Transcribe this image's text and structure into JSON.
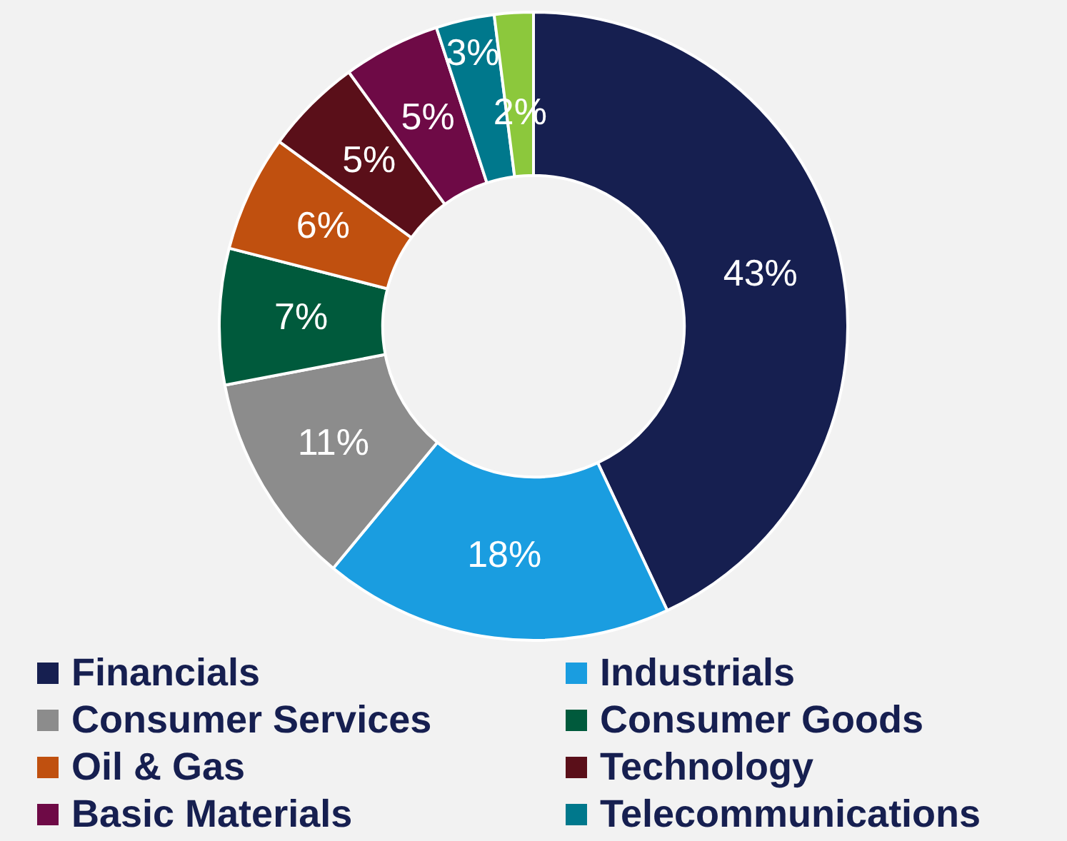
{
  "chart_data": {
    "type": "donut",
    "categories": [
      "Financials",
      "Industrials",
      "Consumer Services",
      "Consumer Goods",
      "Oil & Gas",
      "Technology",
      "Basic Materials",
      "Telecommunications",
      null
    ],
    "values": [
      43,
      18,
      11,
      7,
      6,
      5,
      5,
      3,
      2
    ],
    "colors": [
      "#161f50",
      "#1a9de0",
      "#8c8c8c",
      "#005a3c",
      "#c0500f",
      "#5a0f19",
      "#6e0a46",
      "#00788c",
      "#8cc83c"
    ],
    "value_labels": [
      "43%",
      "18%",
      "11%",
      "7%",
      "6%",
      "5%",
      "5%",
      "3%",
      "2%"
    ],
    "legend": "bottom"
  }
}
